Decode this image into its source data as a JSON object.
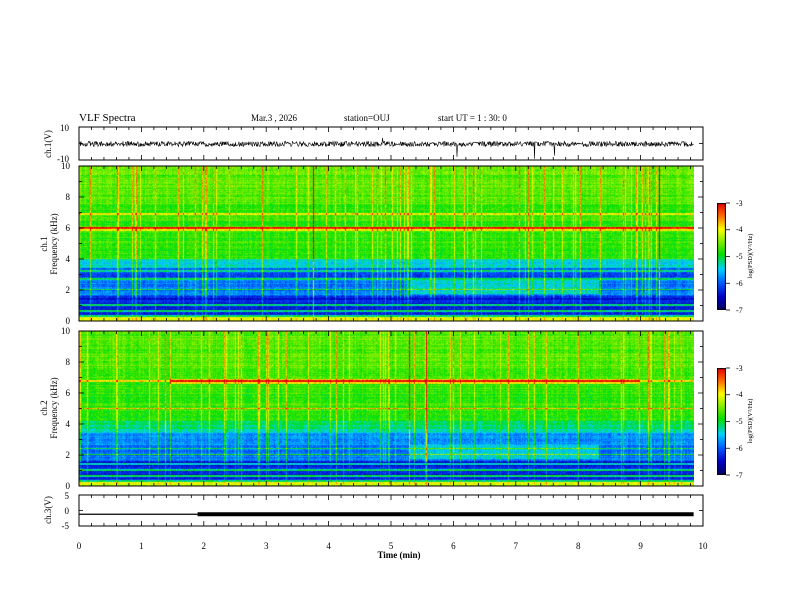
{
  "header": {
    "title": "VLF Spectra",
    "date": "Mar.3  , 2026",
    "station": "station=OUJ",
    "start": "start  UT  =   1 : 30: 0"
  },
  "colors": {
    "low": "#00008b",
    "mid_low": "#00d8ff",
    "mid": "#00e000",
    "mid_high": "#ffff00",
    "high": "#ff0000"
  },
  "chart_data": [
    {
      "type": "line",
      "panel": "ch1-waveform",
      "ylabel": "ch.1(V)",
      "ylim": [
        -10,
        10
      ],
      "y_tick_labels": [
        "10",
        "-10"
      ],
      "signal": "noise around 0 V with occasional negative spikes"
    },
    {
      "type": "heatmap",
      "panel": "ch1-spectrogram",
      "ylabel_line1": "ch.1",
      "ylabel_line2": "Frequency (kHz)",
      "ylim": [
        0,
        10
      ],
      "y_tick_labels": [
        "0",
        "2",
        "4",
        "6",
        "8",
        "10"
      ],
      "colorbar": {
        "label": "log(PSD)(V²/Hz)",
        "range": [
          -7,
          -3
        ],
        "tick_labels": [
          "-3",
          "-4",
          "-5",
          "-6",
          "-7"
        ]
      },
      "features_khz": [
        0.3,
        0.6,
        1.0,
        2.0,
        2.7,
        3.2,
        6.0,
        6.9
      ]
    },
    {
      "type": "heatmap",
      "panel": "ch2-spectrogram",
      "ylabel_line1": "ch.2",
      "ylabel_line2": "Frequency (kHz)",
      "ylim": [
        0,
        10
      ],
      "y_tick_labels": [
        "0",
        "2",
        "4",
        "6",
        "8",
        "10"
      ],
      "colorbar": {
        "label": "log(PSD)(V²/Hz)",
        "range": [
          -7,
          -3
        ],
        "tick_labels": [
          "-3",
          "-4",
          "-5",
          "-6",
          "-7"
        ]
      },
      "features_khz": [
        0.3,
        0.6,
        1.0,
        1.4,
        2.0,
        2.4,
        5.0,
        6.8
      ]
    },
    {
      "type": "line",
      "panel": "ch3-waveform",
      "ylabel": "ch.3(V)",
      "ylim": [
        -5,
        5
      ],
      "y_tick_labels": [
        "5",
        "0",
        "-5"
      ],
      "x": [
        0,
        1.9,
        1.9,
        9.85
      ],
      "y": [
        -1.2,
        -1.2,
        -1.2,
        -1.2
      ],
      "segments": [
        {
          "from_min": 0,
          "to_min": 1.9,
          "style": "thin"
        },
        {
          "from_min": 1.9,
          "to_min": 9.85,
          "style": "thick"
        }
      ]
    }
  ],
  "time_axis": {
    "xlabel": "Time  (min)",
    "xlim": [
      0,
      10
    ],
    "tick_labels": [
      "0",
      "1",
      "2",
      "3",
      "4",
      "5",
      "6",
      "7",
      "8",
      "9",
      "10"
    ],
    "data_end_min": 9.85
  }
}
